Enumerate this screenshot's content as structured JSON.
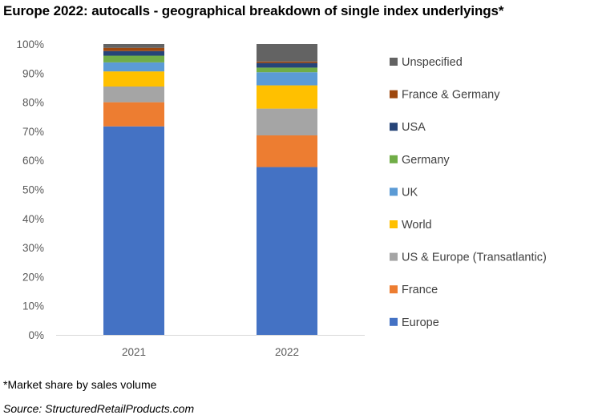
{
  "title": "Europe 2022: autocalls - geographical breakdown of single index underlyings*",
  "footnote": "*Market share by sales volume",
  "source": "Source: StructuredRetailProducts.com",
  "chart_data": {
    "type": "bar",
    "stacked": true,
    "categories": [
      "2021",
      "2022"
    ],
    "ylim": [
      0,
      100
    ],
    "yticks": [
      "0%",
      "10%",
      "20%",
      "30%",
      "40%",
      "50%",
      "60%",
      "70%",
      "80%",
      "90%",
      "100%"
    ],
    "grid": false,
    "legend_position": "right",
    "series": [
      {
        "name": "Europe",
        "color": "#4472C4",
        "values": [
          71.7,
          57.7
        ]
      },
      {
        "name": "France",
        "color": "#ED7D31",
        "values": [
          8.3,
          10.9
        ]
      },
      {
        "name": "US & Europe (Transatlantic)",
        "color": "#A5A5A5",
        "values": [
          5.4,
          9.2
        ]
      },
      {
        "name": "World",
        "color": "#FFC000",
        "values": [
          5.2,
          8.0
        ]
      },
      {
        "name": "UK",
        "color": "#5B9BD5",
        "values": [
          3.1,
          4.5
        ]
      },
      {
        "name": "Germany",
        "color": "#70AD47",
        "values": [
          2.3,
          1.6
        ]
      },
      {
        "name": "USA",
        "color": "#264478",
        "values": [
          1.6,
          1.6
        ]
      },
      {
        "name": "France & Germany",
        "color": "#9E480E",
        "values": [
          1.1,
          0.5
        ]
      },
      {
        "name": "Unspecified",
        "color": "#636363",
        "values": [
          1.3,
          6.0
        ]
      }
    ]
  }
}
